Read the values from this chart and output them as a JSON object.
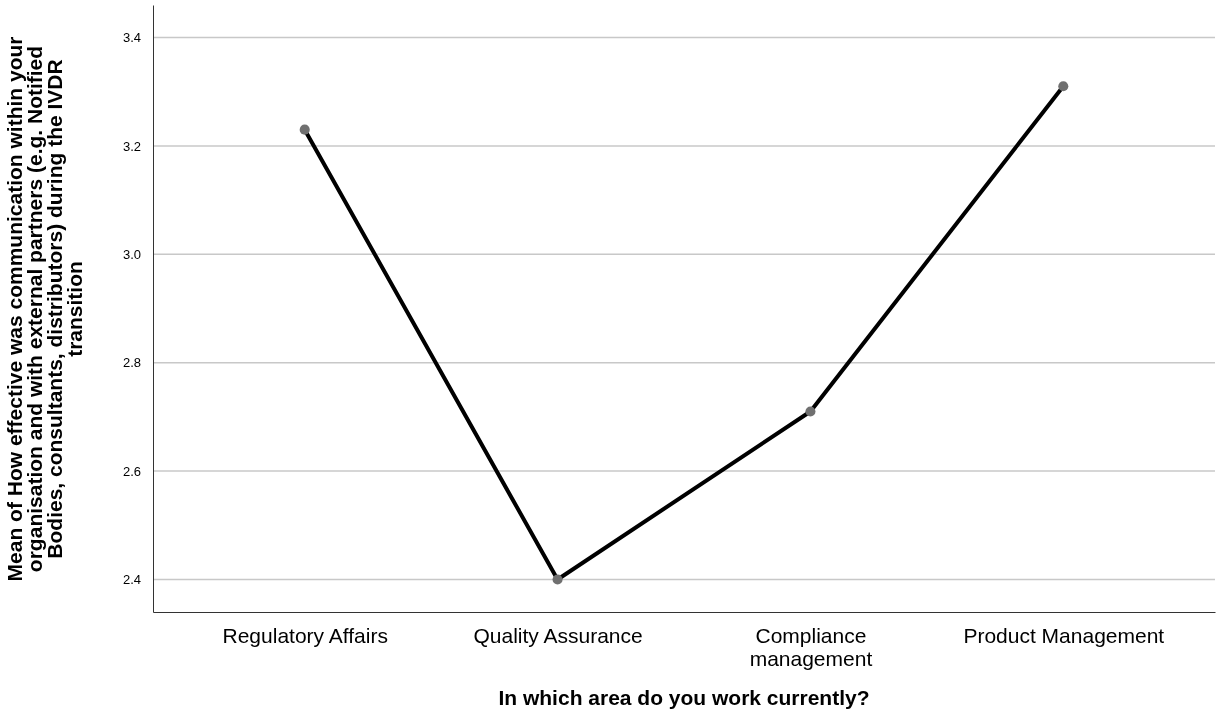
{
  "chart_data": {
    "type": "line",
    "xlabel": "In which area do you work currently?",
    "ylabel": "Mean of How effective was communication within your organisation and with external partners (e.g. Notified Bodies, consultants, distributors) during the IVDR transition",
    "categories": [
      "Regulatory Affairs",
      "Quality Assurance",
      "Compliance management",
      "Product Management"
    ],
    "series": [
      {
        "color": "#000000",
        "values": [
          3.23,
          2.4,
          2.71,
          3.31
        ]
      }
    ],
    "ylim": [
      2.34,
      3.46
    ],
    "yticks": [
      2.4,
      2.6,
      2.8,
      {
        "value": 3,
        "label": "3.0"
      },
      3.2,
      3.4
    ],
    "grid": "y",
    "marker": "circle",
    "line_style": "solid"
  }
}
